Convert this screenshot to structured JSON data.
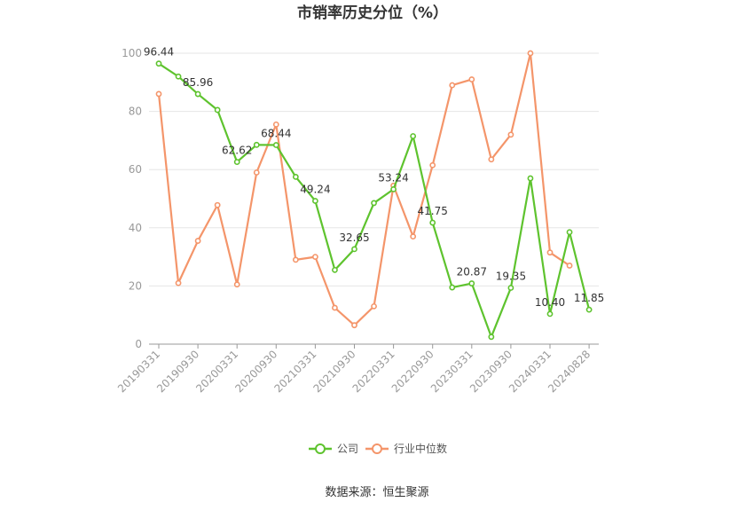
{
  "chart_data": {
    "type": "line",
    "title": "市销率历史分位（%）",
    "ylim": [
      0,
      100
    ],
    "yticks": [
      0,
      20,
      40,
      60,
      80,
      100
    ],
    "grid": true,
    "x": [
      "20190331",
      "20190630",
      "20190930",
      "20191231",
      "20200331",
      "20200630",
      "20200930",
      "20201231",
      "20210331",
      "20210630",
      "20210930",
      "20211231",
      "20220331",
      "20220630",
      "20220930",
      "20221231",
      "20230331",
      "20230630",
      "20230930",
      "20231231",
      "20240331",
      "20240630",
      "20240828"
    ],
    "xtick_labels": [
      "20190331",
      "20190930",
      "20200331",
      "20200930",
      "20210331",
      "20210930",
      "20220331",
      "20220930",
      "20230331",
      "20230930",
      "20240331",
      "20240828"
    ],
    "series": [
      {
        "name": "公司",
        "color": "#5ec32e",
        "values": [
          96.44,
          92.0,
          85.96,
          80.5,
          62.62,
          68.5,
          68.44,
          57.5,
          49.24,
          25.5,
          32.65,
          48.5,
          53.24,
          71.5,
          41.75,
          19.5,
          20.87,
          2.5,
          19.35,
          57.0,
          10.4,
          38.5,
          11.85
        ],
        "labels": {
          "0": "96.44",
          "2": "85.96",
          "4": "62.62",
          "6": "68.44",
          "8": "49.24",
          "10": "32.65",
          "12": "53.24",
          "14": "41.75",
          "16": "20.87",
          "18": "19.35",
          "20": "10.40",
          "22": "11.85"
        }
      },
      {
        "name": "行业中位数",
        "color": "#f4956a",
        "values": [
          86.0,
          21.0,
          35.5,
          47.8,
          20.5,
          59.0,
          75.5,
          29.0,
          30.0,
          12.5,
          6.5,
          13.0,
          54.5,
          37.0,
          61.5,
          89.0,
          91.0,
          63.5,
          72.0,
          100.0,
          31.5,
          27.0,
          null
        ]
      }
    ],
    "legend": {
      "position": "bottom",
      "items": [
        "公司",
        "行业中位数"
      ]
    },
    "source": "数据来源：恒生聚源"
  }
}
